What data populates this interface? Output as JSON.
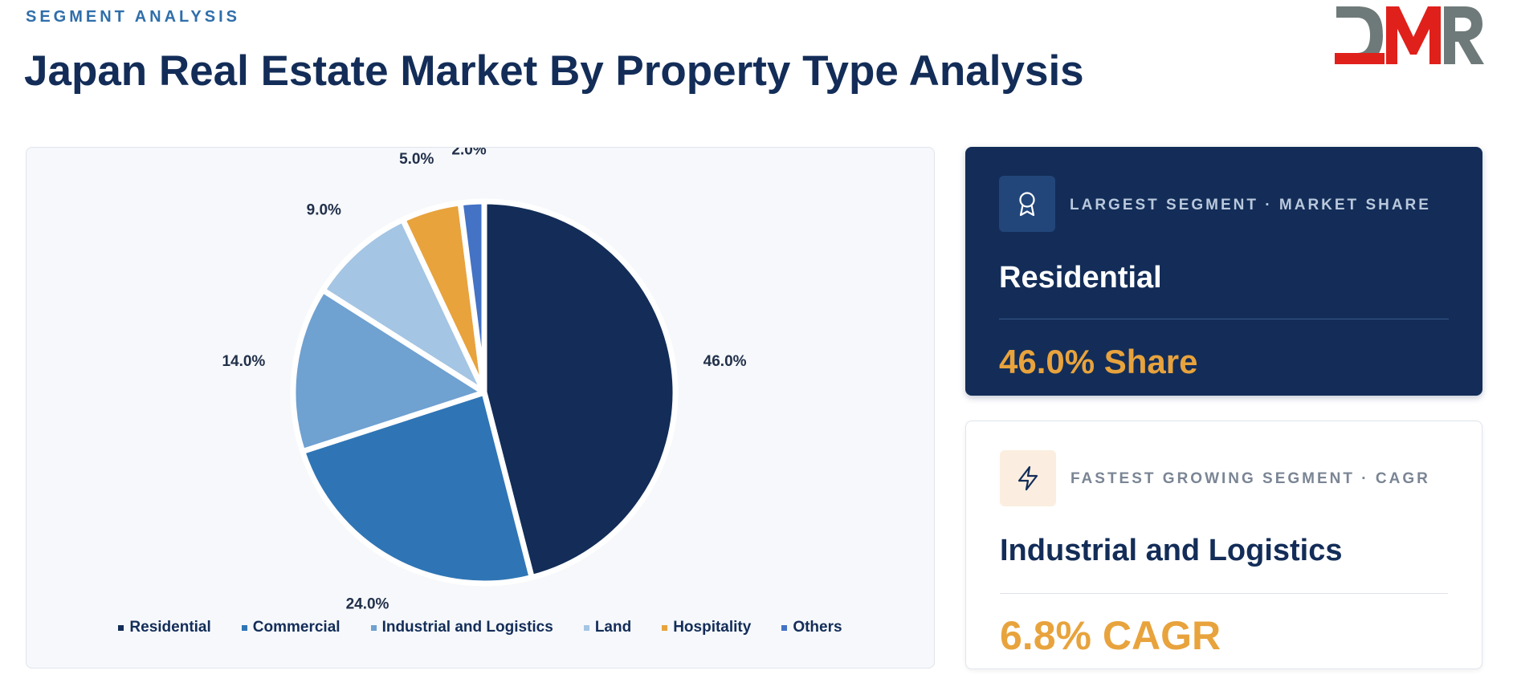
{
  "header": {
    "eyebrow": "SEGMENT ANALYSIS",
    "title": "Japan Real Estate Market By Property Type Analysis",
    "logo_text": "DMR"
  },
  "chart_data": {
    "type": "pie",
    "title": "",
    "categories": [
      "Residential",
      "Commercial",
      "Industrial and Logistics",
      "Land",
      "Hospitality",
      "Others"
    ],
    "values": [
      46.0,
      24.0,
      14.0,
      9.0,
      5.0,
      2.0
    ],
    "labels": [
      "46.0%",
      "24.0%",
      "14.0%",
      "9.0%",
      "5.0%",
      "2.0%"
    ],
    "colors": [
      "#132d58",
      "#2f75b5",
      "#6fa1d1",
      "#a4c5e3",
      "#e8a33d",
      "#4472c4"
    ],
    "legend_position": "bottom"
  },
  "largest": {
    "icon": "award-icon",
    "label": "LARGEST SEGMENT  ·  MARKET SHARE",
    "name": "Residential",
    "value": "46.0% Share"
  },
  "fastest": {
    "icon": "lightning-icon",
    "label": "FASTEST GROWING SEGMENT  ·  CAGR",
    "name": "Industrial and Logistics",
    "value": "6.8% CAGR"
  },
  "colors": {
    "navy": "#132d58",
    "accent": "#e8a33d",
    "brand_red": "#e0201b",
    "brand_gray": "#6e7a79"
  }
}
